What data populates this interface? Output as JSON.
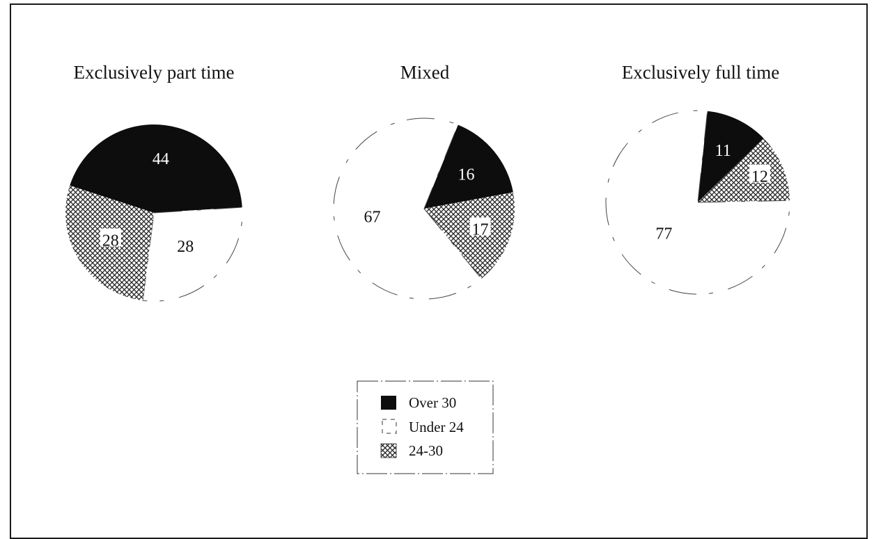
{
  "colors": {
    "over_30": "#0d0d0d",
    "under_24": "#ffffff",
    "24_30": "crosshatch",
    "outline": "#222222"
  },
  "chart_data": [
    {
      "type": "pie",
      "title": "Exclusively part time",
      "slices": [
        {
          "label": "Over 30",
          "value": 44
        },
        {
          "label": "Under 24",
          "value": 28
        },
        {
          "label": "24-30",
          "value": 28
        }
      ]
    },
    {
      "type": "pie",
      "title": "Mixed",
      "slices": [
        {
          "label": "Over 30",
          "value": 16
        },
        {
          "label": "24-30",
          "value": 17
        },
        {
          "label": "Under 24",
          "value": 67
        }
      ]
    },
    {
      "type": "pie",
      "title": "Exclusively full time",
      "slices": [
        {
          "label": "Over 30",
          "value": 11
        },
        {
          "label": "24-30",
          "value": 12
        },
        {
          "label": "Under 24",
          "value": 77
        }
      ]
    }
  ],
  "legend": {
    "placement": "bottom-center",
    "items": [
      {
        "label": "Over 30",
        "fill": "solid"
      },
      {
        "label": "Under 24",
        "fill": "empty"
      },
      {
        "label": "24-30",
        "fill": "crosshatch"
      }
    ]
  }
}
